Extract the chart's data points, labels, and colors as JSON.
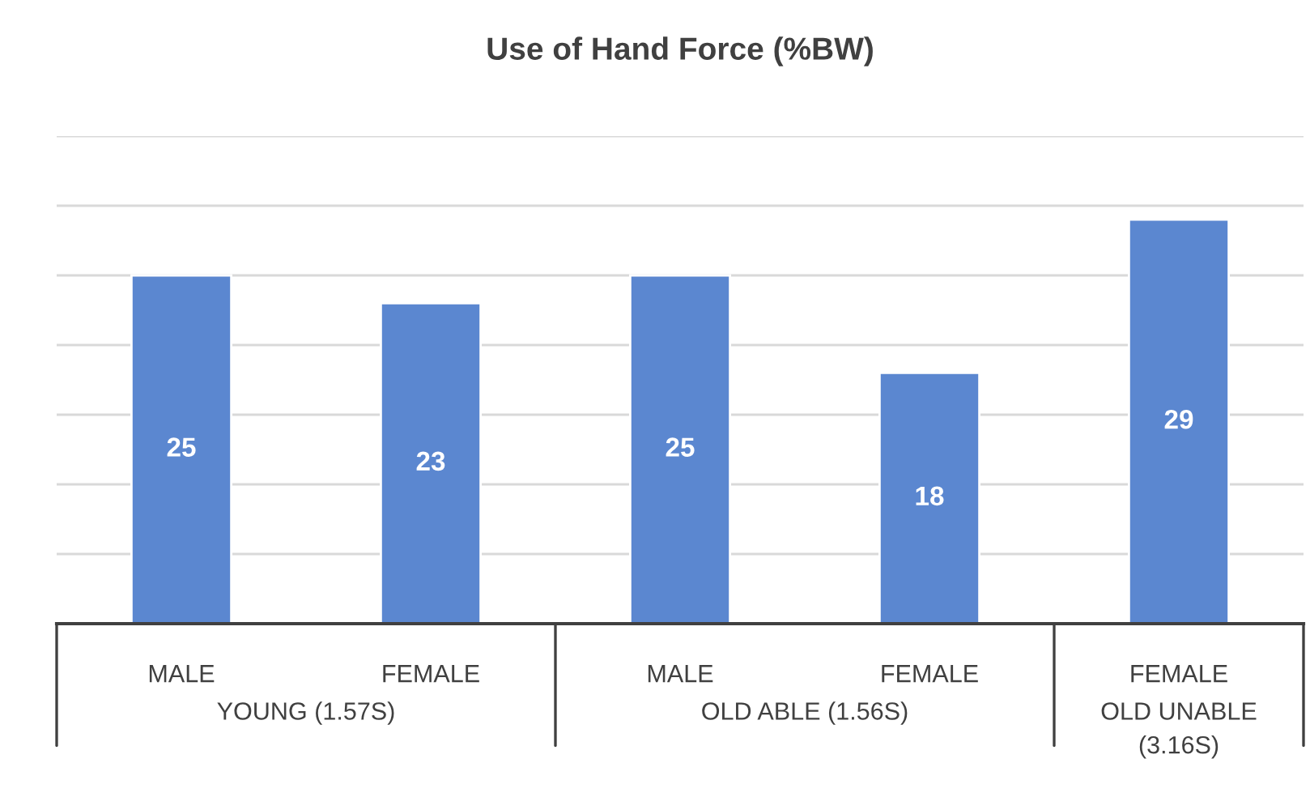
{
  "chart_data": {
    "type": "bar",
    "title": "Use of Hand Force (%BW)",
    "categories": [
      "MALE",
      "FEMALE",
      "MALE",
      "FEMALE",
      "FEMALE"
    ],
    "values": [
      25,
      23,
      25,
      18,
      29
    ],
    "color": "#5b87d0",
    "ylim": [
      0,
      35
    ],
    "yticks": [
      {
        "value": 0,
        "label": null
      },
      {
        "value": 5,
        "label": null
      },
      {
        "value": 10,
        "label": null
      },
      {
        "value": 15,
        "label": null
      },
      {
        "value": 20,
        "label": null
      },
      {
        "value": 25,
        "label": null
      },
      {
        "value": 30,
        "label": null
      },
      {
        "value": 35,
        "label": null
      }
    ],
    "tick_labels": "x",
    "grid": "y",
    "data_labels": true,
    "legend": false,
    "annotations": [
      "YOUNG (1.57S)",
      "OLD ABLE (1.56S)",
      "OLD UNABLE\n(3.16S)"
    ]
  }
}
